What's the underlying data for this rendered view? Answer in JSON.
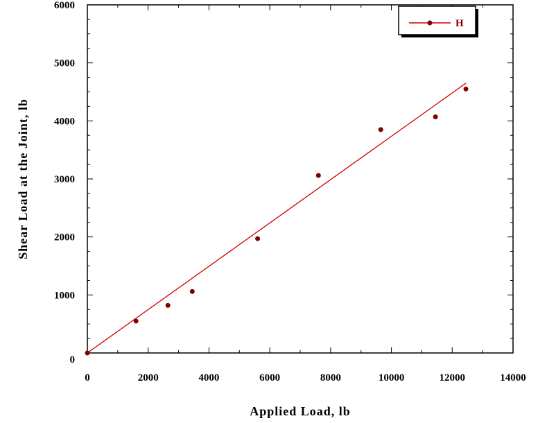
{
  "colors": {
    "series": "#7f0000",
    "fit_line": "#cc0000",
    "axes": "#000000"
  },
  "chart_data": {
    "type": "scatter",
    "xlabel": "Applied Load, lb",
    "ylabel": "Shear Load at the Joint, lb",
    "xlim": [
      0,
      14000
    ],
    "ylim": [
      0,
      6000
    ],
    "x_ticks": [
      "0",
      "2000",
      "4000",
      "6000",
      "8000",
      "10000",
      "12000",
      "14000"
    ],
    "y_ticks": [
      "0",
      "1000",
      "2000",
      "3000",
      "4000",
      "5000",
      "6000"
    ],
    "grid": false,
    "legend_placement": "top-right",
    "series": [
      {
        "name": "H",
        "x": [
          0,
          1600,
          2650,
          3450,
          5600,
          7600,
          9650,
          11450,
          12450
        ],
        "y": [
          0,
          550,
          820,
          1060,
          1970,
          3060,
          3850,
          4070,
          4550
        ]
      }
    ],
    "fit_line": {
      "x": [
        0,
        12450
      ],
      "y": [
        0,
        4650
      ]
    }
  }
}
